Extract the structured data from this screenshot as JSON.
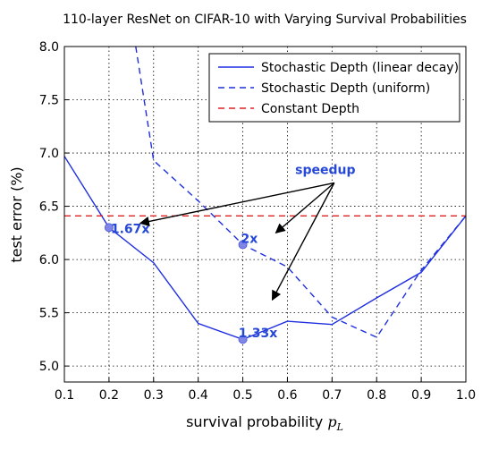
{
  "chart_data": {
    "type": "line",
    "title": "110-layer ResNet on CIFAR-10 with Varying Survival Probabilities",
    "xlabel_text": "survival probability ",
    "xlabel_math": "p",
    "xlabel_sub": "L",
    "ylabel": "test error (%)",
    "xlim": [
      0.1,
      1.0
    ],
    "ylim": [
      4.85,
      8.0
    ],
    "xticks": [
      "0.1",
      "0.2",
      "0.3",
      "0.4",
      "0.5",
      "0.6",
      "0.7",
      "0.8",
      "0.9",
      "1.0"
    ],
    "yticks": [
      "5.0",
      "5.5",
      "6.0",
      "6.5",
      "7.0",
      "7.5",
      "8.0"
    ],
    "grid": true,
    "legend_position": "top-right",
    "series": [
      {
        "name": "Stochastic Depth (linear decay)",
        "style": "solid",
        "color": "#1f2fe0",
        "x": [
          0.1,
          0.2,
          0.3,
          0.4,
          0.5,
          0.6,
          0.7,
          0.8,
          0.9,
          1.0
        ],
        "y": [
          6.97,
          6.3,
          5.97,
          5.4,
          5.25,
          5.42,
          5.39,
          5.64,
          5.88,
          6.41
        ]
      },
      {
        "name": "Stochastic Depth (uniform)",
        "style": "dashed",
        "color": "#1f2fe0",
        "x": [
          0.26,
          0.3,
          0.4,
          0.5,
          0.6,
          0.7,
          0.8,
          0.9,
          1.0
        ],
        "y": [
          8.0,
          6.93,
          6.55,
          6.14,
          5.93,
          5.46,
          5.27,
          5.9,
          6.41
        ]
      },
      {
        "name": "Constant Depth",
        "style": "dashed",
        "color": "#e02020",
        "x": [
          0.1,
          1.0
        ],
        "y": [
          6.41,
          6.41
        ]
      }
    ],
    "markers": [
      {
        "x": 0.2,
        "y": 6.3
      },
      {
        "x": 0.5,
        "y": 6.14
      },
      {
        "x": 0.5,
        "y": 5.25
      }
    ],
    "annotations": {
      "source_label": "speedup",
      "source": {
        "x": 0.705,
        "y": 6.72
      },
      "labels": [
        {
          "text": "1.67x",
          "x": 0.23,
          "y": 6.29
        },
        {
          "text": "2x",
          "x": 0.55,
          "y": 6.2
        },
        {
          "text": "1.33x",
          "x": 0.55,
          "y": 5.47
        }
      ]
    }
  }
}
